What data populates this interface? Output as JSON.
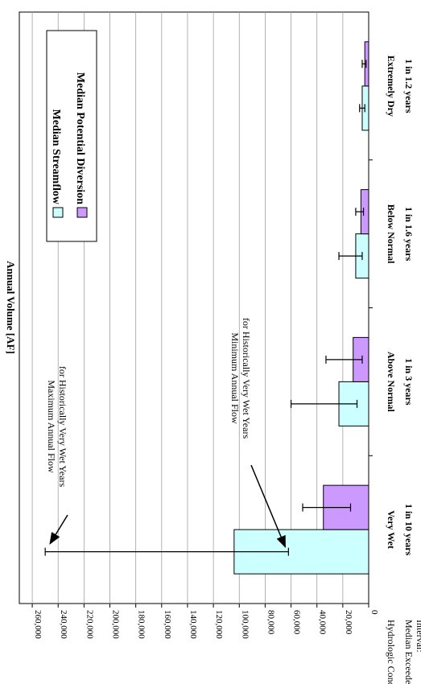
{
  "chart_data": {
    "type": "bar",
    "orientation": "rotated-90-clockwise",
    "categories": [
      {
        "condition": "Very Wet",
        "interval": "1 in 10 years"
      },
      {
        "condition": "Above Normal",
        "interval": "1 in 3 years"
      },
      {
        "condition": "Below Normal",
        "interval": "1 in 1.6 years"
      },
      {
        "condition": "Extremely Dry",
        "interval": "1 in 1.2 years"
      }
    ],
    "series": [
      {
        "name": "Median Streamflow",
        "color": "#ccffff",
        "values": [
          104000,
          23000,
          10000,
          5000
        ],
        "error_low": [
          62000,
          9000,
          5000,
          3000
        ],
        "error_high": [
          250000,
          60000,
          23000,
          7000
        ]
      },
      {
        "name": "Median Potential Diversion",
        "color": "#cc99ff",
        "values": [
          35000,
          12000,
          6000,
          3000
        ],
        "error_low": [
          14000,
          5000,
          4000,
          2000
        ],
        "error_high": [
          51000,
          33000,
          10000,
          5000
        ]
      }
    ],
    "ylabel": "Annual Volume [AF]",
    "ylim": [
      0,
      270000
    ],
    "yticks": [
      0,
      20000,
      40000,
      60000,
      80000,
      100000,
      120000,
      140000,
      160000,
      180000,
      200000,
      220000,
      240000,
      260000
    ],
    "grid": true,
    "legend": "top-right",
    "row_labels": {
      "condition": "Hydrologic Condition:",
      "interval": "Median Exceedence Interval:"
    },
    "annotations": [
      {
        "text": [
          "Maximum Annual Flow",
          "for Historically Very Wet Years"
        ],
        "points_to": 250000
      },
      {
        "text": [
          "Minimum Annual Flow",
          "for Historically Very Wet Years"
        ],
        "points_to": 62000
      }
    ]
  }
}
